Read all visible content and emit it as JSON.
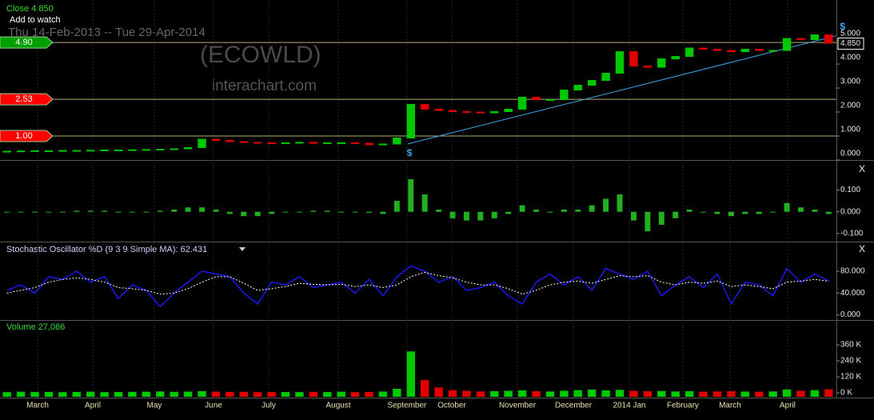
{
  "chart_data": [
    {
      "type": "candlestick",
      "title": "Close 4.850",
      "annotations": {
        "watch": "Add to watch",
        "range": "Thu 14-Feb-2013  --  Tue 29-Apr-2014",
        "symbol": "(ECOWLD)",
        "watermark": "interachart.com"
      },
      "colors": {
        "up": "#00c800",
        "down": "#e00000"
      },
      "values": [
        0.35,
        0.36,
        0.37,
        0.37,
        0.38,
        0.38,
        0.39,
        0.4,
        0.4,
        0.41,
        0.42,
        0.43,
        0.45,
        0.5,
        0.85,
        0.8,
        0.75,
        0.72,
        0.7,
        0.68,
        0.7,
        0.72,
        0.68,
        0.7,
        0.7,
        0.68,
        0.62,
        0.65,
        0.9,
        2.3,
        2.1,
        2.05,
        2.0,
        1.98,
        1.95,
        2.0,
        2.1,
        2.6,
        2.5,
        2.5,
        2.9,
        3.1,
        3.3,
        3.6,
        4.5,
        3.9,
        3.85,
        4.2,
        4.3,
        4.65,
        4.6,
        4.55,
        4.5,
        4.6,
        4.55,
        4.55,
        5.05,
        5.0,
        5.2,
        4.85
      ],
      "ylim": [
        0,
        6.57
      ],
      "yticks": [
        {
          "value": 0,
          "label": "0.000"
        },
        {
          "value": 1,
          "label": "1.000"
        },
        {
          "value": 2,
          "label": "2.000"
        },
        {
          "value": 3,
          "label": "3.000"
        },
        {
          "value": 4,
          "label": "4.000"
        },
        {
          "value": 5,
          "label": "5.000"
        }
      ],
      "levels": [
        {
          "value": 4.9,
          "label": "4.90",
          "color": "#00a000"
        },
        {
          "value": 2.53,
          "label": "2.53",
          "color": "#ff0000"
        },
        {
          "value": 1.0,
          "label": "1.00",
          "color": "#ff0000"
        }
      ],
      "last": {
        "value": 4.85,
        "label": "4.850"
      },
      "trendline": {
        "x": [
          28.78,
          59.5
        ],
        "values": [
          0.67,
          5.17
        ],
        "color": "#3aa8e8"
      },
      "markers": [
        {
          "x": 28.9,
          "y": 0.28,
          "label": "$"
        },
        {
          "x": 60.0,
          "y": 5.55,
          "label": "$"
        }
      ]
    },
    {
      "type": "bar",
      "close": "X",
      "color": "#22b022",
      "values": [
        0,
        0,
        0,
        0,
        0,
        0.005,
        0.005,
        0.005,
        0,
        0,
        0,
        0.005,
        0.01,
        0.02,
        0.02,
        0.01,
        -0.01,
        -0.02,
        -0.02,
        -0.01,
        0,
        0,
        0.005,
        0.005,
        0,
        0,
        -0.005,
        -0.01,
        0.05,
        0.15,
        0.08,
        0.01,
        -0.03,
        -0.04,
        -0.04,
        -0.03,
        -0.01,
        0.03,
        0.01,
        0,
        0.01,
        0.01,
        0.03,
        0.06,
        0.08,
        -0.04,
        -0.09,
        -0.06,
        -0.03,
        0.01,
        0,
        -0.01,
        -0.02,
        -0.01,
        -0.01,
        0,
        0.04,
        0.02,
        0.01,
        -0.01
      ],
      "ylim": [
        -0.13,
        0.22
      ],
      "yticks": [
        {
          "value": 0.1,
          "label": "0.100"
        },
        {
          "value": 0,
          "label": "0.000"
        },
        {
          "value": -0.1,
          "label": "-0.100"
        }
      ]
    },
    {
      "type": "line",
      "title": "Stochastic Oscillator %D (9 3 9 Simple MA): 62.431",
      "close": "X",
      "series": [
        {
          "color": "#1a1aff",
          "values": [
            45,
            55,
            40,
            70,
            65,
            80,
            60,
            70,
            30,
            55,
            45,
            15,
            40,
            60,
            80,
            75,
            70,
            40,
            20,
            60,
            55,
            70,
            50,
            55,
            60,
            40,
            65,
            35,
            70,
            90,
            80,
            60,
            70,
            45,
            50,
            60,
            35,
            20,
            60,
            75,
            55,
            70,
            45,
            85,
            75,
            65,
            80,
            35,
            55,
            70,
            50,
            75,
            20,
            60,
            55,
            35,
            85,
            60,
            75,
            62.431
          ]
        },
        {
          "color": "#ffffff",
          "dashed": true,
          "values": [
            40,
            45,
            50,
            60,
            65,
            68,
            65,
            60,
            50,
            48,
            45,
            38,
            40,
            48,
            60,
            70,
            70,
            58,
            45,
            48,
            52,
            58,
            56,
            55,
            56,
            52,
            55,
            50,
            55,
            70,
            78,
            72,
            68,
            60,
            55,
            55,
            48,
            38,
            45,
            55,
            60,
            62,
            58,
            65,
            72,
            70,
            72,
            60,
            55,
            60,
            58,
            62,
            52,
            55,
            52,
            48,
            60,
            62,
            65,
            62
          ]
        }
      ],
      "ylim": [
        -5,
        130
      ],
      "yticks": [
        {
          "value": 80,
          "label": "80.000"
        },
        {
          "value": 40,
          "label": "40.000"
        },
        {
          "value": 0,
          "label": "0.000"
        }
      ]
    },
    {
      "type": "volume",
      "title": "Volume 27,086",
      "values": [
        5,
        8,
        6,
        7,
        5,
        6,
        8,
        5,
        6,
        7,
        8,
        10,
        7,
        9,
        12,
        8,
        6,
        7,
        5,
        6,
        6,
        5,
        7,
        6,
        8,
        5,
        6,
        9,
        30,
        310,
        95,
        40,
        20,
        15,
        10,
        12,
        15,
        18,
        12,
        10,
        15,
        20,
        25,
        18,
        22,
        15,
        12,
        14,
        10,
        12,
        8,
        10,
        12,
        9,
        8,
        10,
        25,
        15,
        20,
        27.086
      ],
      "ylim": [
        -30,
        516
      ],
      "yticks": [
        {
          "value": 360,
          "label": "360 K"
        },
        {
          "value": 240,
          "label": "240 K"
        },
        {
          "value": 120,
          "label": "120 K"
        },
        {
          "value": 0,
          "label": "0 K"
        }
      ],
      "xlim": [
        -0.5,
        59.5
      ],
      "xticks": [
        {
          "value": 2.2,
          "label": "March"
        },
        {
          "value": 6.16,
          "label": "April"
        },
        {
          "value": 10.58,
          "label": "May"
        },
        {
          "value": 14.83,
          "label": "June"
        },
        {
          "value": 18.79,
          "label": "July"
        },
        {
          "value": 23.79,
          "label": "August"
        },
        {
          "value": 28.72,
          "label": "September"
        },
        {
          "value": 31.94,
          "label": "October"
        },
        {
          "value": 36.65,
          "label": "November"
        },
        {
          "value": 40.67,
          "label": "December"
        },
        {
          "value": 44.69,
          "label": "2014 Jan"
        },
        {
          "value": 48.53,
          "label": "February"
        },
        {
          "value": 51.92,
          "label": "March"
        },
        {
          "value": 56.05,
          "label": "April"
        }
      ]
    }
  ]
}
